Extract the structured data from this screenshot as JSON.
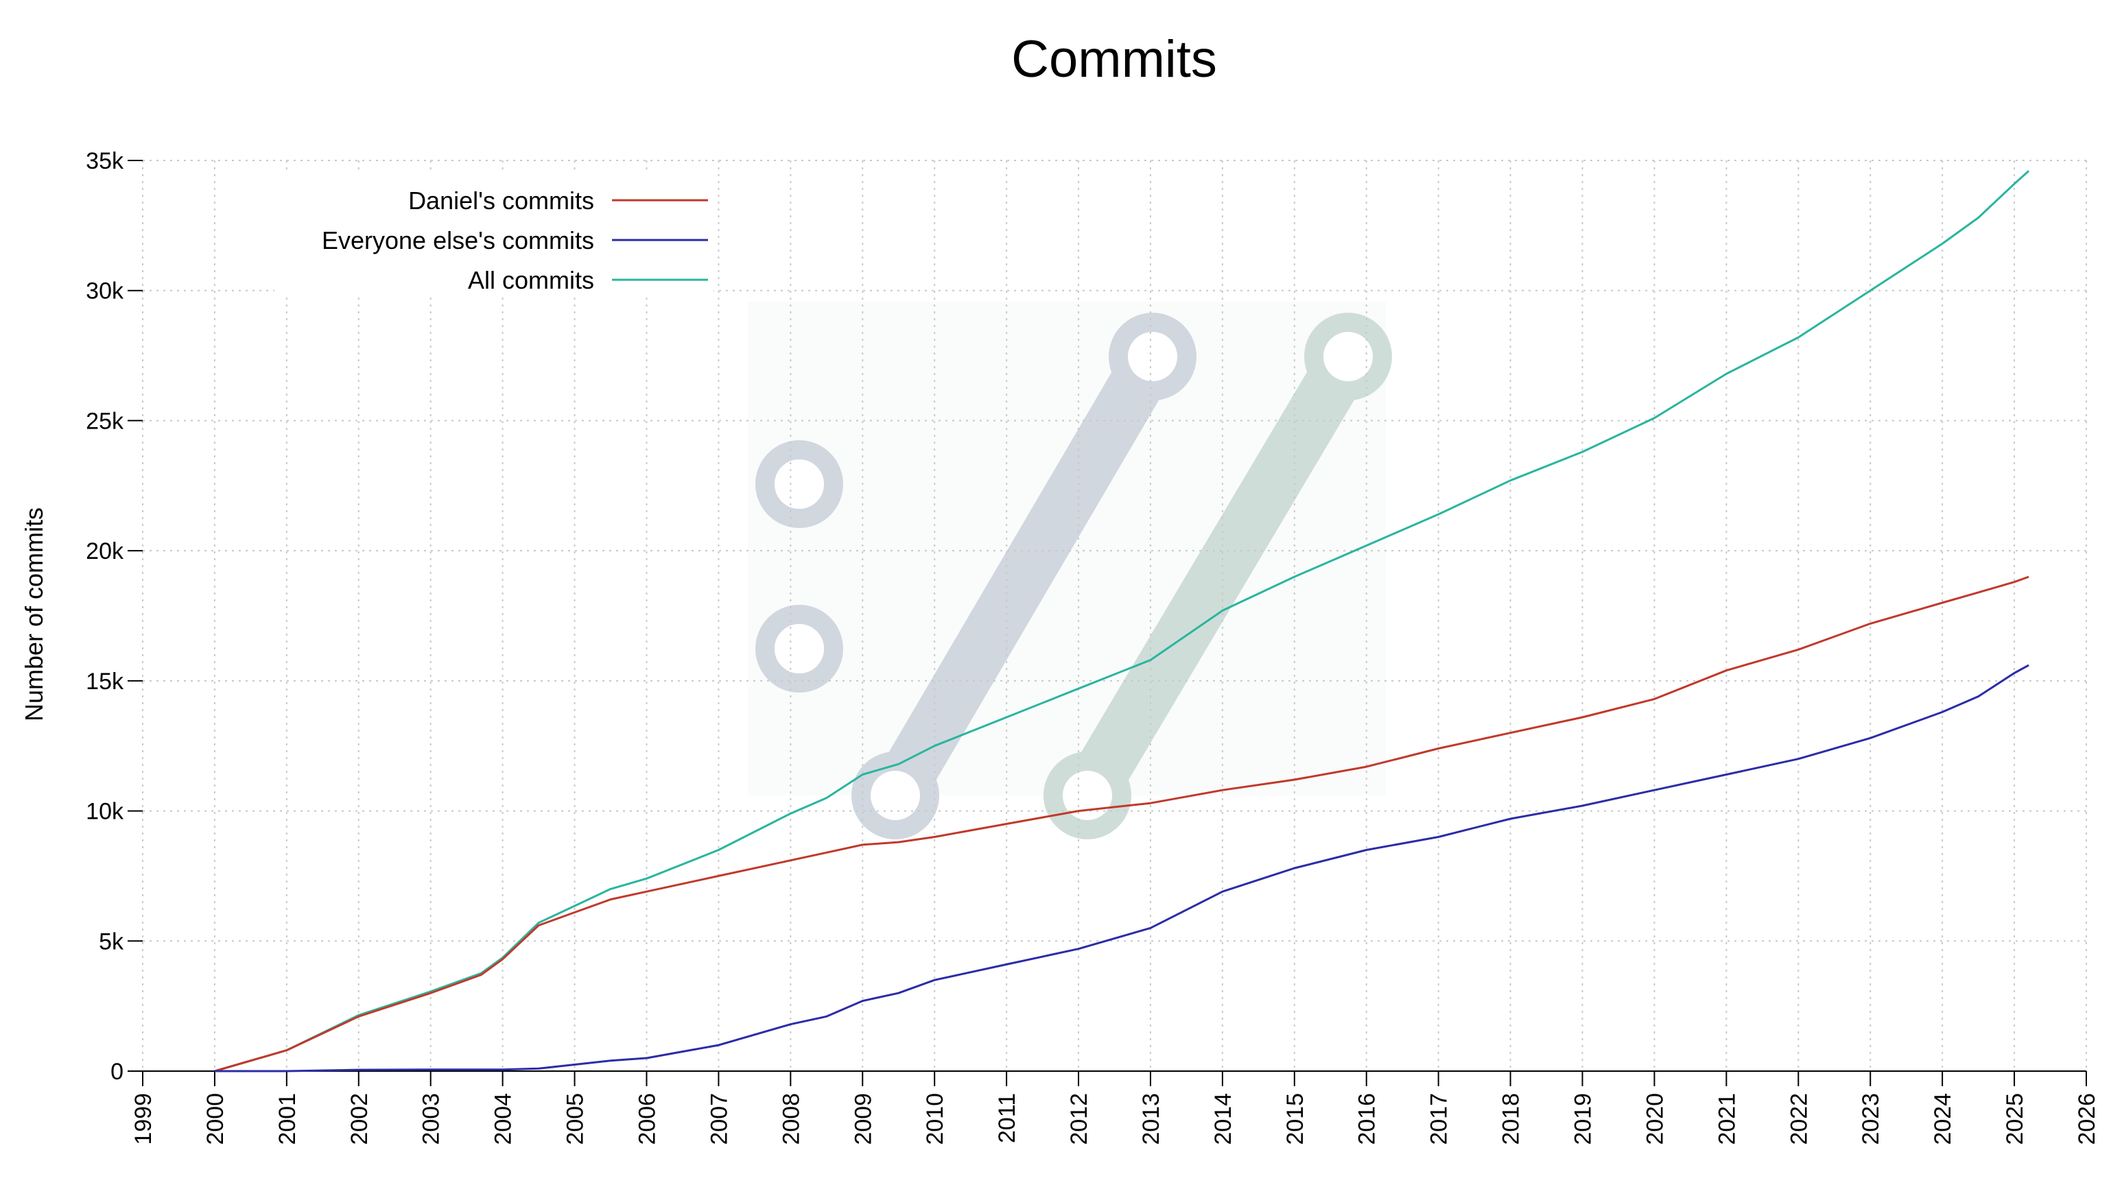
{
  "chart_data": {
    "type": "line",
    "title": "Commits",
    "xlabel": "",
    "ylabel": "Number of commits",
    "xlim": [
      1999,
      2026
    ],
    "ylim": [
      0,
      35000
    ],
    "x_ticks": [
      "1999",
      "2000",
      "2001",
      "2002",
      "2003",
      "2004",
      "2005",
      "2006",
      "2007",
      "2008",
      "2009",
      "2010",
      "2011",
      "2012",
      "2013",
      "2014",
      "2015",
      "2016",
      "2017",
      "2018",
      "2019",
      "2020",
      "2021",
      "2022",
      "2023",
      "2024",
      "2025",
      "2026"
    ],
    "y_ticks": [
      {
        "value": 0,
        "label": "0"
      },
      {
        "value": 5000,
        "label": "5k"
      },
      {
        "value": 10000,
        "label": "10k"
      },
      {
        "value": 15000,
        "label": "15k"
      },
      {
        "value": 20000,
        "label": "20k"
      },
      {
        "value": 25000,
        "label": "25k"
      },
      {
        "value": 30000,
        "label": "30k"
      },
      {
        "value": 35000,
        "label": "35k"
      }
    ],
    "grid": true,
    "legend_position": "top-left",
    "x": [
      2000.0,
      2001.0,
      2002.0,
      2003.0,
      2003.7,
      2004.0,
      2004.5,
      2005.0,
      2005.5,
      2006.0,
      2007.0,
      2008.0,
      2008.5,
      2009.0,
      2009.5,
      2010.0,
      2011.0,
      2012.0,
      2013.0,
      2014.0,
      2015.0,
      2016.0,
      2017.0,
      2018.0,
      2019.0,
      2020.0,
      2021.0,
      2022.0,
      2023.0,
      2024.0,
      2024.5,
      2025.0,
      2025.2
    ],
    "series": [
      {
        "name": "Daniel's commits",
        "color": "#c0392b",
        "values": [
          0,
          800,
          2100,
          3000,
          3700,
          4300,
          5600,
          6100,
          6600,
          6900,
          7500,
          8100,
          8400,
          8700,
          8800,
          9000,
          9500,
          10000,
          10300,
          10800,
          11200,
          11700,
          12400,
          13000,
          13600,
          14300,
          15400,
          16200,
          17200,
          18000,
          18400,
          18800,
          19000
        ]
      },
      {
        "name": "Everyone else's commits",
        "color": "#2c2ca8",
        "values": [
          0,
          0,
          50,
          60,
          60,
          60,
          100,
          250,
          400,
          500,
          1000,
          1800,
          2100,
          2700,
          3000,
          3500,
          4100,
          4700,
          5500,
          6900,
          7800,
          8500,
          9000,
          9700,
          10200,
          10800,
          11400,
          12000,
          12800,
          13800,
          14400,
          15300,
          15600
        ]
      },
      {
        "name": "All commits",
        "color": "#2ab59e",
        "values": [
          0,
          800,
          2150,
          3060,
          3760,
          4360,
          5700,
          6350,
          7000,
          7400,
          8500,
          9900,
          10500,
          11400,
          11800,
          12500,
          13600,
          14700,
          15800,
          17700,
          19000,
          20200,
          21400,
          22700,
          23800,
          25100,
          26800,
          28200,
          30000,
          31800,
          32800,
          34100,
          34600
        ]
      }
    ]
  },
  "watermark": {
    "name": "git-logo",
    "colors": [
      "#d1d7df",
      "#cfddd8"
    ]
  }
}
